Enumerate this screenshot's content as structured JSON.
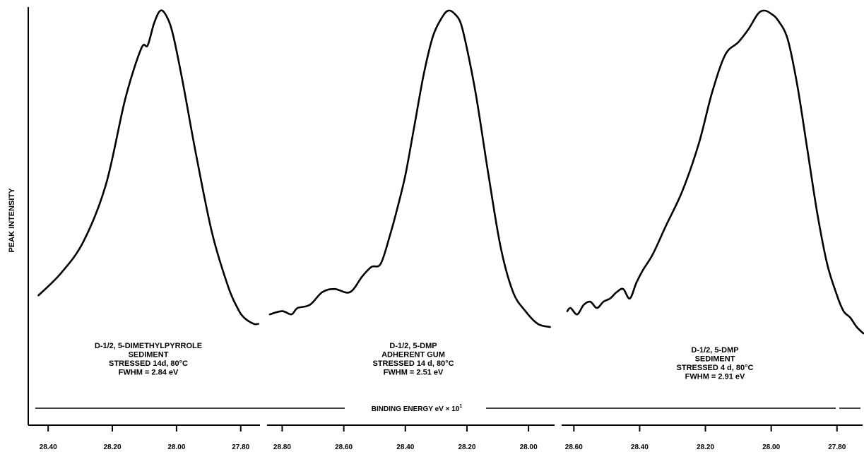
{
  "chart_data": {
    "type": "line",
    "ylabel": "PEAK INTENSITY",
    "xlabel_main": "BINDING ENERGY eV × 10",
    "xlabel_superscript": "1",
    "panels": [
      {
        "x_ticks": [
          "28.40",
          "28.20",
          "28.00",
          "27.80"
        ],
        "x_tick_values": [
          28.4,
          28.2,
          28.0,
          27.8
        ],
        "xlim": [
          28.44,
          27.74
        ],
        "ylim": [
          0,
          100
        ],
        "annotation": [
          "D-1/2, 5-DIMETHYLPYRROLE",
          "SEDIMENT",
          "STRESSED 14d, 80°C",
          "FWHM = 2.84 eV"
        ],
        "series": [
          {
            "x": [
              28.43,
              28.36,
              28.29,
              28.22,
              28.16,
              28.11,
              28.09,
              28.07,
              28.05,
              28.03,
              28.01,
              27.98,
              27.94,
              27.89,
              27.84,
              27.81,
              27.79,
              27.76,
              27.745
            ],
            "y": [
              10,
              17,
              27,
              45,
              72,
              88,
              89,
              96,
              100,
              98,
              92,
              77,
              55,
              30,
              13,
              6,
              3,
              1,
              1
            ]
          }
        ]
      },
      {
        "x_ticks": [
          "28.80",
          "28.60",
          "28.40",
          "28.20",
          "28.00"
        ],
        "x_tick_values": [
          28.8,
          28.6,
          28.4,
          28.2,
          28.0
        ],
        "xlim": [
          28.84,
          27.92
        ],
        "ylim": [
          0,
          100
        ],
        "annotation": [
          "D-1/2, 5-DMP",
          "ADHERENT GUM",
          "STRESSED 14 d, 80°C",
          "FWHM = 2.51 eV"
        ],
        "series": [
          {
            "x": [
              28.84,
              28.8,
              28.77,
              28.75,
              28.71,
              28.67,
              28.63,
              28.58,
              28.54,
              28.51,
              28.48,
              28.45,
              28.43,
              28.4,
              28.37,
              28.34,
              28.31,
              28.28,
              28.26,
              28.24,
              28.22,
              28.2,
              28.17,
              28.13,
              28.09,
              28.05,
              28.01,
              27.97,
              27.93
            ],
            "y": [
              4,
              5,
              4,
              6,
              7,
              11,
              12,
              11,
              16,
              19,
              20,
              29,
              36,
              48,
              64,
              80,
              92,
              98,
              100,
              99,
              96,
              88,
              73,
              48,
              25,
              11,
              5,
              1,
              0
            ]
          }
        ]
      },
      {
        "x_ticks": [
          "28.60",
          "28.40",
          "28.20",
          "28.00",
          "27.80"
        ],
        "x_tick_values": [
          28.6,
          28.4,
          28.2,
          28.0,
          27.8
        ],
        "xlim": [
          28.62,
          27.72
        ],
        "ylim": [
          0,
          100
        ],
        "annotation": [
          "D-1/2, 5-DMP",
          "SEDIMENT",
          "STRESSED 4 d, 80°C",
          "FWHM = 2.91 eV"
        ],
        "series": [
          {
            "x": [
              28.62,
              28.61,
              28.59,
              28.57,
              28.55,
              28.53,
              28.51,
              28.49,
              28.47,
              28.45,
              28.43,
              28.41,
              28.39,
              28.36,
              28.32,
              28.27,
              28.22,
              28.18,
              28.14,
              28.1,
              28.07,
              28.04,
              28.02,
              28.0,
              27.98,
              27.95,
              27.92,
              27.89,
              27.86,
              27.83,
              27.8,
              27.78,
              27.76,
              27.74,
              27.72
            ],
            "y": [
              5,
              6,
              4,
              7,
              8,
              6,
              8,
              9,
              11,
              12,
              9,
              14,
              18,
              23,
              32,
              43,
              58,
              74,
              86,
              90,
              94,
              99,
              100,
              99,
              97,
              91,
              76,
              56,
              36,
              20,
              10,
              5,
              3,
              0,
              -2
            ]
          }
        ]
      }
    ]
  }
}
